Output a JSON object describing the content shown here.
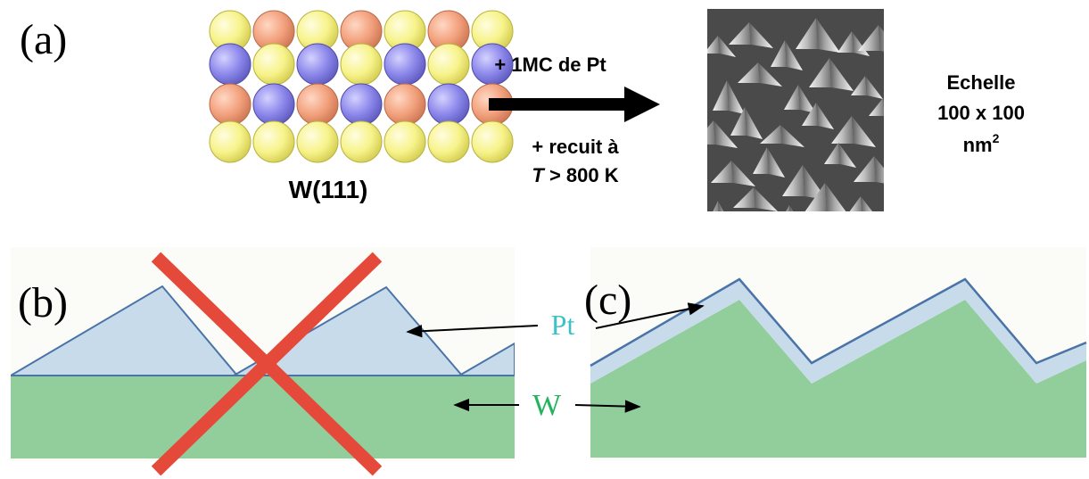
{
  "panel_a": {
    "label": "(a)",
    "crystal_label": "W(111)",
    "process_line1": "+ 1MC de Pt",
    "process_line2": "+ recuit à",
    "process_line3_var": "T",
    "process_line3_rest": " > 800 K",
    "scale_line1": "Echelle",
    "scale_line2": "100 x 100",
    "scale_line3": "nm",
    "scale_line3_sup": "2"
  },
  "panel_b": {
    "label": "(b)"
  },
  "panel_c": {
    "label": "(c)"
  },
  "labels": {
    "pt": "Pt",
    "w": "W"
  },
  "colors": {
    "atom_yellow": "#f7f38a",
    "atom_orange": "#f2a07c",
    "atom_blue": "#8b86ea",
    "pt_fill": "#c7dbea",
    "w_fill": "#92cd9c",
    "interface_line": "#4a73a8",
    "cross": "#e5493a",
    "pt_text": "#3ec1c6",
    "w_text": "#22b45c",
    "stm_bg": "#4a4a4a"
  },
  "icons": {
    "process_arrow": "right-arrow",
    "cross": "x-mark"
  }
}
